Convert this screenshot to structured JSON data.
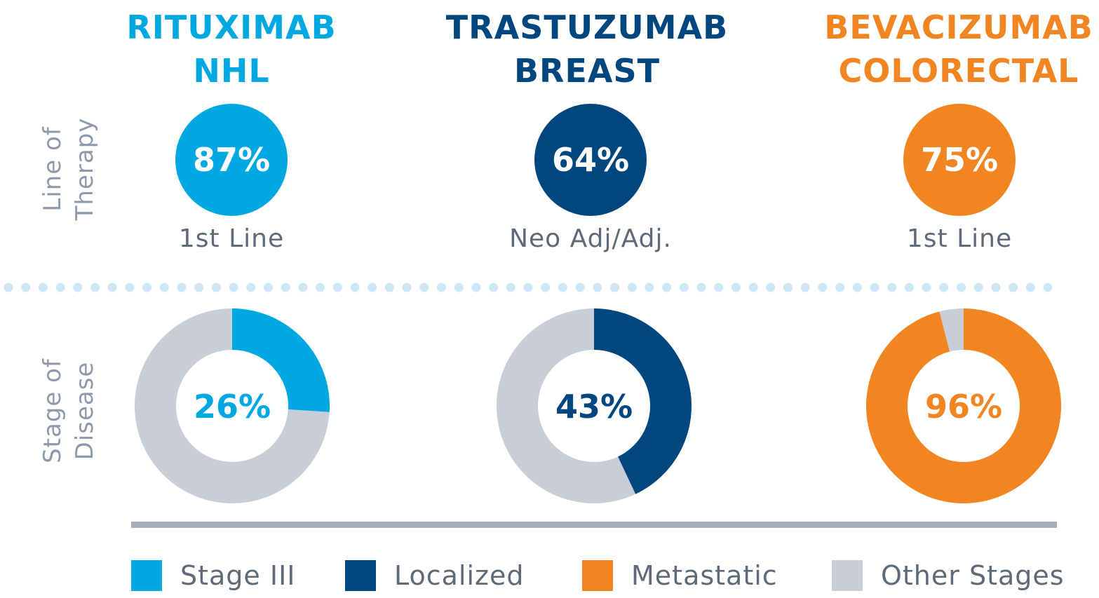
{
  "colors": {
    "stage_iii": "#00a8e1",
    "localized": "#00467f",
    "metastatic": "#f18521",
    "other": "#c9cdd7",
    "dots": "#cfe6f6"
  },
  "row_labels": {
    "line_of_therapy": [
      "Line of",
      "Therapy"
    ],
    "stage_of_disease": [
      "Stage of",
      "Disease"
    ]
  },
  "chart_data": {
    "type": "pie",
    "panels": [
      {
        "drug": "RITUXIMAB",
        "indication": "NHL",
        "color": "#00a8e1",
        "line_of_therapy": {
          "label": "1st Line",
          "value": 87,
          "display": "87%"
        },
        "stage_of_disease": {
          "category": "Stage III",
          "value": 26,
          "display": "26%"
        }
      },
      {
        "drug": "TRASTUZUMAB",
        "indication": "BREAST",
        "color": "#00467f",
        "line_of_therapy": {
          "label": "Neo Adj/Adj.",
          "value": 64,
          "display": "64%"
        },
        "stage_of_disease": {
          "category": "Localized",
          "value": 43,
          "display": "43%"
        }
      },
      {
        "drug": "BEVACIZUMAB",
        "indication": "COLORECTAL",
        "color": "#f18521",
        "line_of_therapy": {
          "label": "1st Line",
          "value": 75,
          "display": "75%"
        },
        "stage_of_disease": {
          "category": "Metastatic",
          "value": 96,
          "display": "96%"
        }
      }
    ],
    "legend": {
      "placement": "bottom",
      "entries": [
        {
          "label": "Stage III",
          "color": "#00a8e1"
        },
        {
          "label": "Localized",
          "color": "#00467f"
        },
        {
          "label": "Metastatic",
          "color": "#f18521"
        },
        {
          "label": "Other Stages",
          "color": "#c9cdd7"
        }
      ]
    }
  }
}
